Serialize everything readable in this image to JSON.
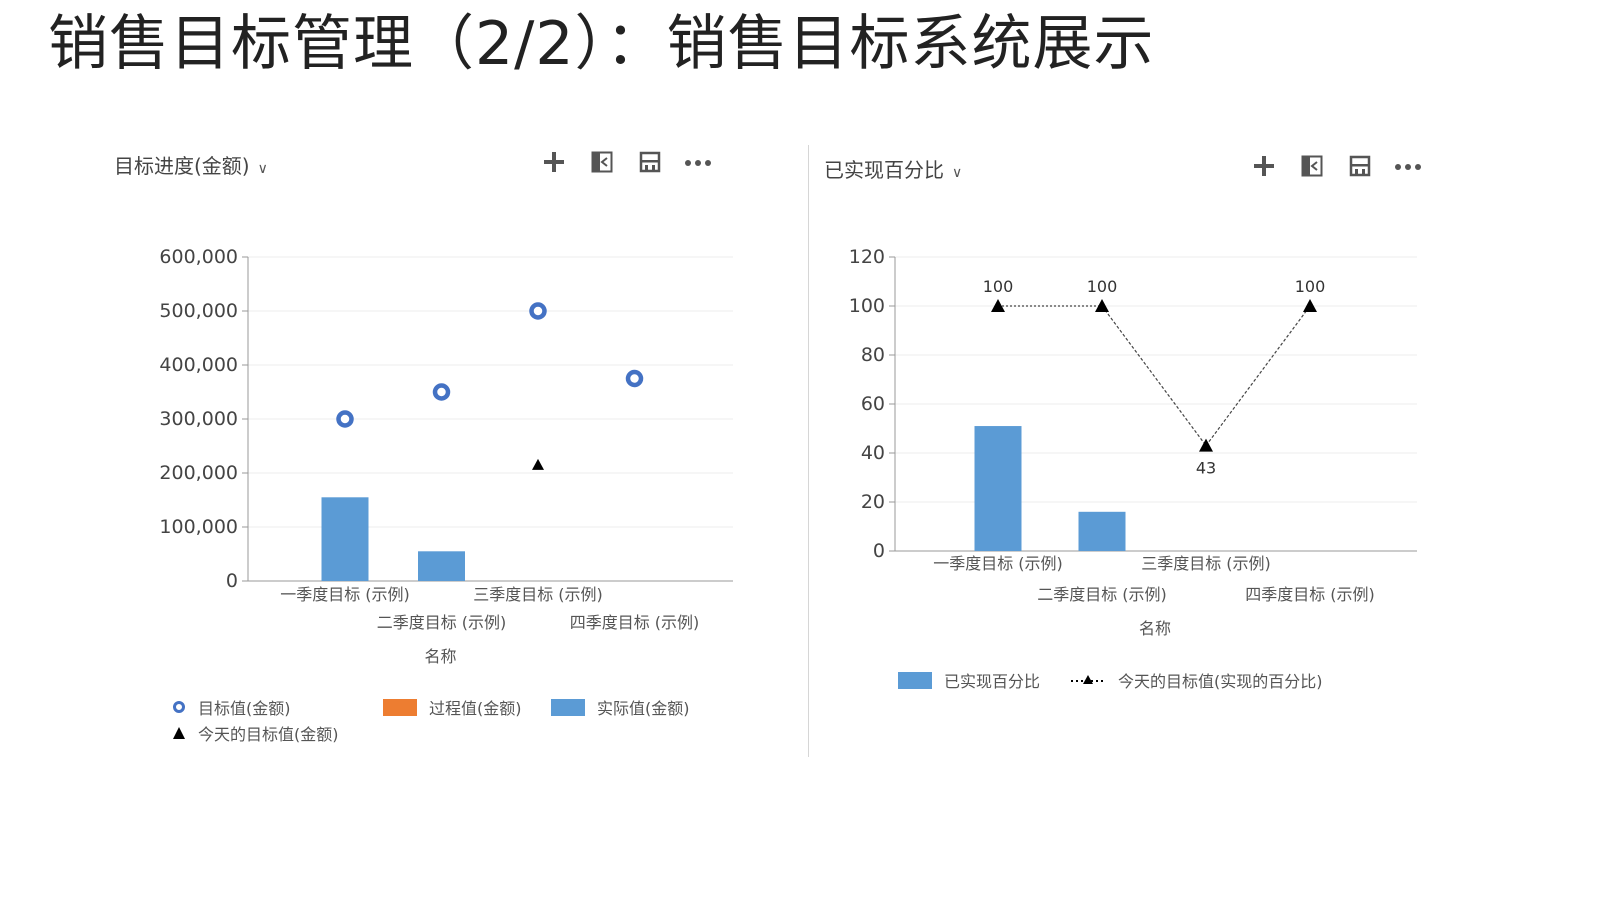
{
  "page": {
    "title": "销售目标管理（2/2）：销售目标系统展示"
  },
  "left_panel": {
    "view_label": "目标进度(金额)",
    "legend": [
      {
        "label": "目标值(金额)",
        "marker": "ring",
        "color": "#4472C4"
      },
      {
        "label": "过程值(金额)",
        "marker": "rect",
        "color": "#ED7D31"
      },
      {
        "label": "实际值(金额)",
        "marker": "rect",
        "color": "#5B9BD5"
      },
      {
        "label": "今天的目标值(金额)",
        "marker": "triangle",
        "color": "#000000"
      }
    ]
  },
  "right_panel": {
    "view_label": "已实现百分比",
    "legend": [
      {
        "label": "已实现百分比",
        "marker": "rect",
        "color": "#5B9BD5"
      },
      {
        "label": "今天的目标值(实现的百分比)",
        "marker": "dotted-triangle",
        "color": "#000000"
      }
    ]
  },
  "toolbar_icons": [
    "plus-icon",
    "expand-icon",
    "save-icon",
    "more-icon"
  ],
  "chart_data": [
    {
      "type": "bar",
      "xlabel": "名称",
      "ylabel": "",
      "ylim": [
        0,
        600000
      ],
      "yticks": [
        "0",
        "100,000",
        "200,000",
        "300,000",
        "400,000",
        "500,000",
        "600,000"
      ],
      "categories": [
        "一季度目标 (示例)",
        "二季度目标 (示例)",
        "三季度目标 (示例)",
        "四季度目标 (示例)"
      ],
      "grid": true,
      "legend_position": "bottom",
      "series": [
        {
          "name": "目标值(金额)",
          "kind": "scatter-ring",
          "values": [
            300000,
            350000,
            500000,
            375000
          ]
        },
        {
          "name": "过程值(金额)",
          "kind": "bar",
          "values": [
            null,
            null,
            null,
            null
          ]
        },
        {
          "name": "实际值(金额)",
          "kind": "bar",
          "values": [
            155000,
            55000,
            null,
            null
          ]
        },
        {
          "name": "今天的目标值(金额)",
          "kind": "scatter-triangle",
          "values": [
            null,
            null,
            215000,
            null
          ]
        }
      ]
    },
    {
      "type": "bar",
      "xlabel": "名称",
      "ylabel": "",
      "ylim": [
        0,
        120
      ],
      "yticks": [
        "0",
        "20",
        "40",
        "60",
        "80",
        "100",
        "120"
      ],
      "categories": [
        "一季度目标 (示例)",
        "二季度目标 (示例)",
        "三季度目标 (示例)",
        "四季度目标 (示例)"
      ],
      "grid": true,
      "legend_position": "bottom",
      "series": [
        {
          "name": "已实现百分比",
          "kind": "bar",
          "values": [
            51,
            16,
            null,
            null
          ]
        },
        {
          "name": "今天的目标值(实现的百分比)",
          "kind": "line-triangle",
          "values": [
            100,
            100,
            43,
            100
          ],
          "labels": [
            "100",
            "100",
            "43",
            "100"
          ]
        }
      ]
    }
  ]
}
